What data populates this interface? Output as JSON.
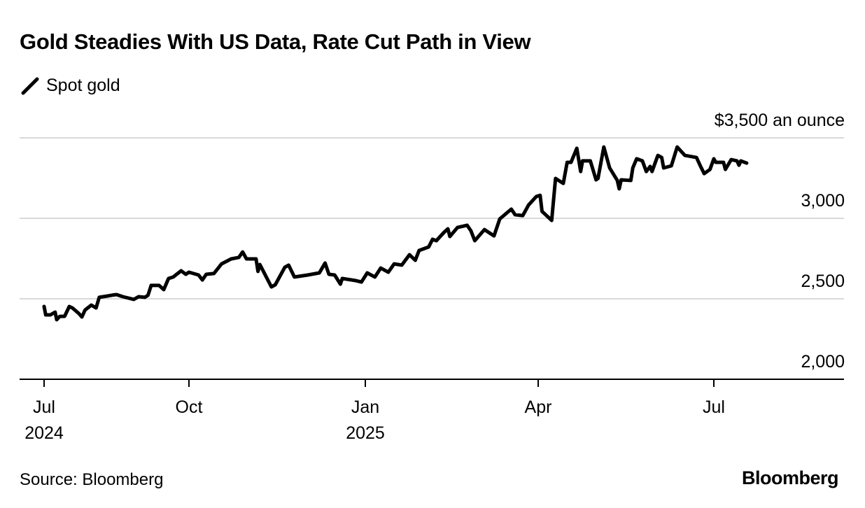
{
  "chart_data": {
    "type": "line",
    "title": "Gold Steadies With US Data, Rate Cut Path in View",
    "ylabel": "$3,500 an ounce",
    "source": "Source: Bloomberg",
    "logo": "Bloomberg",
    "ylim": [
      2000,
      3500
    ],
    "yticks": [
      {
        "value": 2000,
        "label": "2,000"
      },
      {
        "value": 2500,
        "label": "2,500"
      },
      {
        "value": 3000,
        "label": "3,000"
      },
      {
        "value": 3500,
        "label": "$3,500 an ounce"
      }
    ],
    "xticks": [
      {
        "date": "2024-07-01",
        "label": "Jul",
        "sublabel": "2024"
      },
      {
        "date": "2024-10-01",
        "label": "Oct",
        "sublabel": ""
      },
      {
        "date": "2025-01-01",
        "label": "Jan",
        "sublabel": "2025"
      },
      {
        "date": "2025-04-01",
        "label": "Apr",
        "sublabel": ""
      },
      {
        "date": "2025-07-01",
        "label": "Jul",
        "sublabel": ""
      }
    ],
    "grid": true,
    "legend_position": "top-left",
    "series": [
      {
        "name": "Spot gold",
        "color": "#000000",
        "x": [
          "2024-07-01",
          "2024-07-02",
          "2024-07-05",
          "2024-07-08",
          "2024-07-09",
          "2024-07-11",
          "2024-07-14",
          "2024-07-17",
          "2024-07-19",
          "2024-07-23",
          "2024-07-25",
          "2024-07-27",
          "2024-07-31",
          "2024-08-03",
          "2024-08-05",
          "2024-08-10",
          "2024-08-13",
          "2024-08-16",
          "2024-08-20",
          "2024-08-27",
          "2024-08-30",
          "2024-09-03",
          "2024-09-05",
          "2024-09-07",
          "2024-09-12",
          "2024-09-15",
          "2024-09-18",
          "2024-09-21",
          "2024-09-26",
          "2024-09-29",
          "2024-10-01",
          "2024-10-06",
          "2024-10-08",
          "2024-10-10",
          "2024-10-14",
          "2024-10-18",
          "2024-10-23",
          "2024-10-27",
          "2024-10-29",
          "2024-10-31",
          "2024-11-05",
          "2024-11-06",
          "2024-11-07",
          "2024-11-13",
          "2024-11-15",
          "2024-11-20",
          "2024-11-22",
          "2024-11-25",
          "2024-12-02",
          "2024-12-08",
          "2024-12-11",
          "2024-12-13",
          "2024-12-16",
          "2024-12-19",
          "2024-12-20",
          "2024-12-27",
          "2024-12-30",
          "2025-01-02",
          "2025-01-06",
          "2025-01-09",
          "2025-01-13",
          "2025-01-16",
          "2025-01-20",
          "2025-01-24",
          "2025-01-27",
          "2025-01-29",
          "2025-02-03",
          "2025-02-05",
          "2025-02-07",
          "2025-02-11",
          "2025-02-13",
          "2025-02-14",
          "2025-02-18",
          "2025-02-23",
          "2025-02-25",
          "2025-02-27",
          "2025-03-04",
          "2025-03-09",
          "2025-03-12",
          "2025-03-18",
          "2025-03-20",
          "2025-03-24",
          "2025-03-27",
          "2025-03-31",
          "2025-04-02",
          "2025-04-03",
          "2025-04-08",
          "2025-04-10",
          "2025-04-14",
          "2025-04-16",
          "2025-04-18",
          "2025-04-21",
          "2025-04-23",
          "2025-04-24",
          "2025-04-28",
          "2025-05-01",
          "2025-05-02",
          "2025-05-05",
          "2025-05-08",
          "2025-05-12",
          "2025-05-13",
          "2025-05-14",
          "2025-05-19",
          "2025-05-20",
          "2025-05-22",
          "2025-05-25",
          "2025-05-27",
          "2025-05-29",
          "2025-05-30",
          "2025-06-02",
          "2025-06-04",
          "2025-06-05",
          "2025-06-09",
          "2025-06-12",
          "2025-06-16",
          "2025-06-22",
          "2025-06-24",
          "2025-06-26",
          "2025-06-29",
          "2025-07-01",
          "2025-07-02",
          "2025-07-06",
          "2025-07-07",
          "2025-07-10",
          "2025-07-13",
          "2025-07-14",
          "2025-07-15",
          "2025-07-18"
        ],
        "values": [
          2452,
          2400,
          2400,
          2417,
          2370,
          2391,
          2391,
          2452,
          2443,
          2409,
          2387,
          2430,
          2461,
          2443,
          2509,
          2517,
          2522,
          2526,
          2513,
          2496,
          2513,
          2509,
          2522,
          2583,
          2583,
          2557,
          2626,
          2635,
          2674,
          2652,
          2665,
          2648,
          2617,
          2652,
          2657,
          2717,
          2748,
          2757,
          2791,
          2748,
          2748,
          2670,
          2713,
          2574,
          2587,
          2696,
          2709,
          2635,
          2648,
          2661,
          2722,
          2652,
          2648,
          2591,
          2626,
          2613,
          2604,
          2661,
          2635,
          2691,
          2665,
          2717,
          2709,
          2774,
          2739,
          2800,
          2822,
          2870,
          2861,
          2913,
          2935,
          2887,
          2943,
          2957,
          2922,
          2861,
          2930,
          2891,
          2996,
          3057,
          3022,
          3017,
          3083,
          3135,
          3143,
          3043,
          2987,
          3248,
          3217,
          3348,
          3348,
          3435,
          3291,
          3357,
          3357,
          3239,
          3248,
          3443,
          3313,
          3235,
          3183,
          3239,
          3235,
          3313,
          3370,
          3357,
          3291,
          3322,
          3291,
          3391,
          3378,
          3313,
          3326,
          3443,
          3391,
          3378,
          3326,
          3278,
          3304,
          3370,
          3348,
          3348,
          3304,
          3365,
          3357,
          3330,
          3357,
          3343
        ]
      }
    ]
  }
}
